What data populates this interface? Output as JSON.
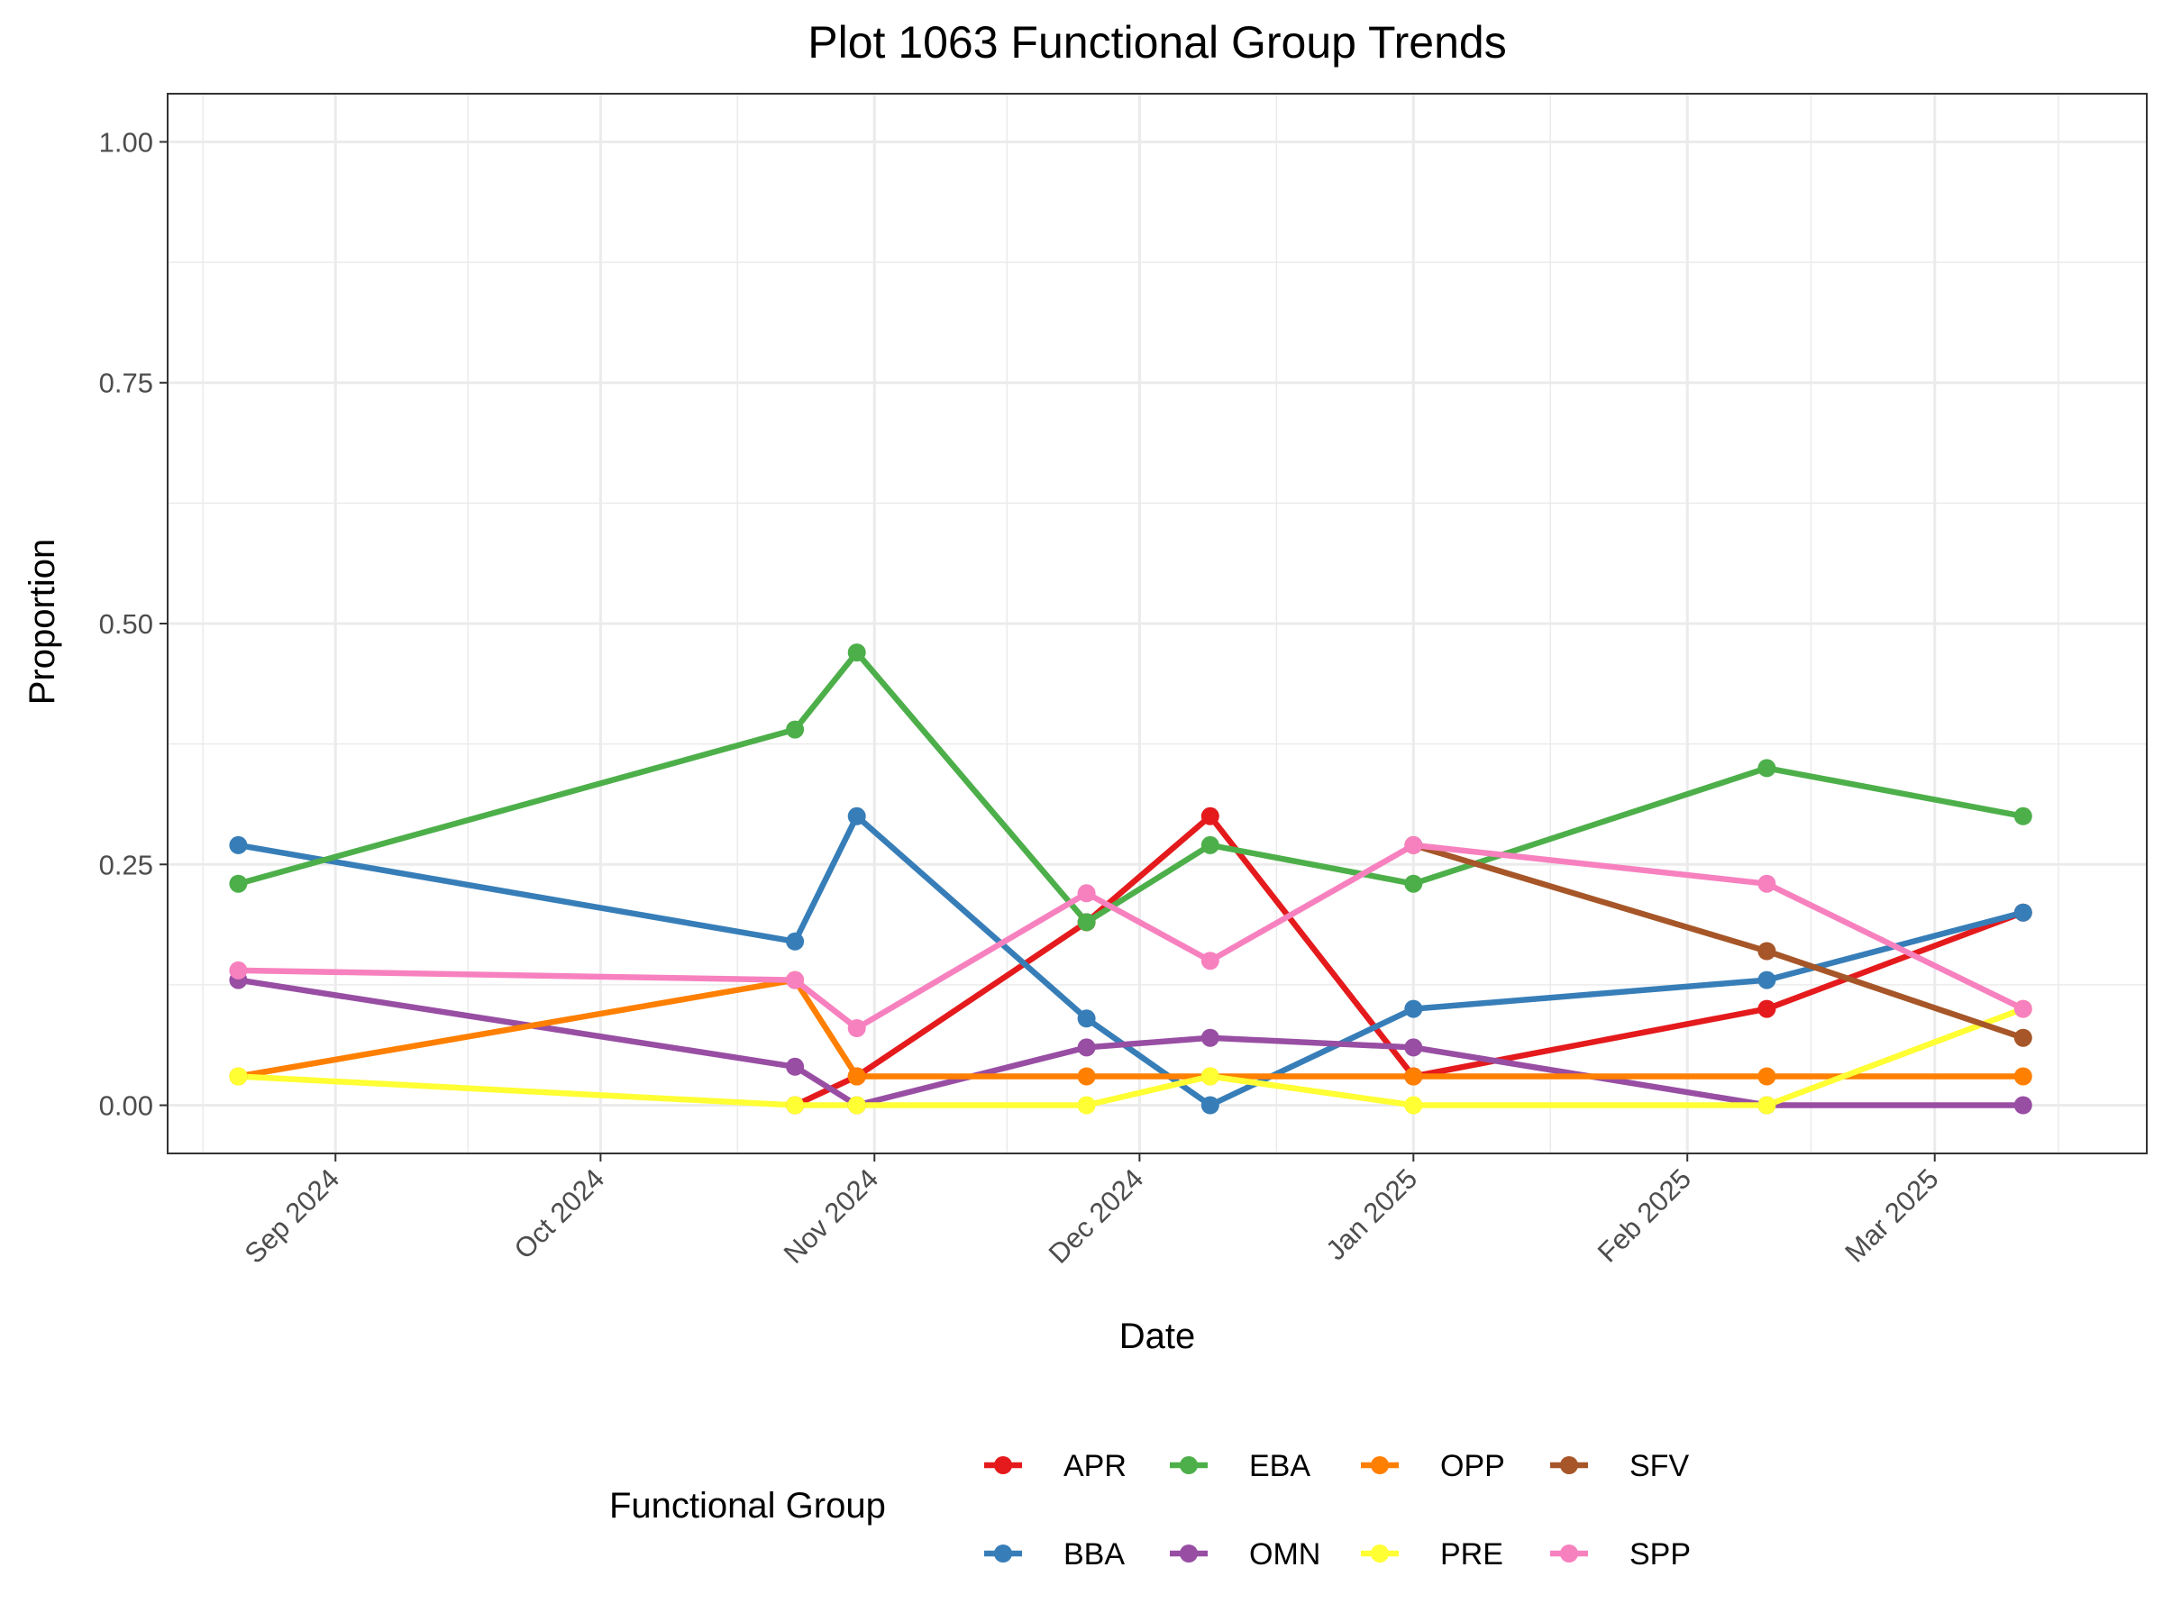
{
  "chart_data": {
    "type": "line",
    "title": "Plot 1063 Functional Group Trends",
    "xlabel": "Date",
    "ylabel": "Proportion",
    "ylim": [
      0,
      1
    ],
    "xlim": [
      "2024-08-13",
      "2025-03-25"
    ],
    "grid": true,
    "legend_position": "bottom",
    "legend_title": "Functional Group",
    "x_ticks": [
      {
        "date": "2024-09-01",
        "label": "Sep 2024"
      },
      {
        "date": "2024-10-01",
        "label": "Oct 2024"
      },
      {
        "date": "2024-11-01",
        "label": "Nov 2024"
      },
      {
        "date": "2024-12-01",
        "label": "Dec 2024"
      },
      {
        "date": "2025-01-01",
        "label": "Jan 2025"
      },
      {
        "date": "2025-02-01",
        "label": "Feb 2025"
      },
      {
        "date": "2025-03-01",
        "label": "Mar 2025"
      }
    ],
    "y_ticks": [
      {
        "value": 0,
        "label": "0.00"
      },
      {
        "value": 0.25,
        "label": "0.25"
      },
      {
        "value": 0.5,
        "label": "0.50"
      },
      {
        "value": 0.75,
        "label": "0.75"
      },
      {
        "value": 1,
        "label": "1.00"
      }
    ],
    "series": [
      {
        "name": "APR",
        "color": "#E41A1C",
        "points": [
          {
            "x": "2024-10-23",
            "y": 0
          },
          {
            "x": "2024-10-30",
            "y": 0.03
          },
          {
            "x": "2024-11-25",
            "y": 0.19
          },
          {
            "x": "2024-12-09",
            "y": 0.3
          },
          {
            "x": "2025-01-01",
            "y": 0.03
          },
          {
            "x": "2025-02-10",
            "y": 0.1
          },
          {
            "x": "2025-03-11",
            "y": 0.2
          }
        ]
      },
      {
        "name": "BBA",
        "color": "#377EB8",
        "points": [
          {
            "x": "2024-08-21",
            "y": 0.27
          },
          {
            "x": "2024-10-23",
            "y": 0.17
          },
          {
            "x": "2024-10-30",
            "y": 0.3
          },
          {
            "x": "2024-11-25",
            "y": 0.09
          },
          {
            "x": "2024-12-09",
            "y": 0
          },
          {
            "x": "2025-01-01",
            "y": 0.1
          },
          {
            "x": "2025-02-10",
            "y": 0.13
          },
          {
            "x": "2025-03-11",
            "y": 0.2
          }
        ]
      },
      {
        "name": "EBA",
        "color": "#4DAF4A",
        "points": [
          {
            "x": "2024-08-21",
            "y": 0.23
          },
          {
            "x": "2024-10-23",
            "y": 0.39
          },
          {
            "x": "2024-10-30",
            "y": 0.47
          },
          {
            "x": "2024-11-25",
            "y": 0.19
          },
          {
            "x": "2024-12-09",
            "y": 0.27
          },
          {
            "x": "2025-01-01",
            "y": 0.23
          },
          {
            "x": "2025-02-10",
            "y": 0.35
          },
          {
            "x": "2025-03-11",
            "y": 0.3
          }
        ]
      },
      {
        "name": "OMN",
        "color": "#984EA3",
        "points": [
          {
            "x": "2024-08-21",
            "y": 0.13
          },
          {
            "x": "2024-10-23",
            "y": 0.04
          },
          {
            "x": "2024-10-30",
            "y": 0
          },
          {
            "x": "2024-11-25",
            "y": 0.06
          },
          {
            "x": "2024-12-09",
            "y": 0.07
          },
          {
            "x": "2025-01-01",
            "y": 0.06
          },
          {
            "x": "2025-02-10",
            "y": 0
          },
          {
            "x": "2025-03-11",
            "y": 0
          }
        ]
      },
      {
        "name": "OPP",
        "color": "#FF7F00",
        "points": [
          {
            "x": "2024-08-21",
            "y": 0.03
          },
          {
            "x": "2024-10-23",
            "y": 0.13
          },
          {
            "x": "2024-10-30",
            "y": 0.03
          },
          {
            "x": "2024-11-25",
            "y": 0.03
          },
          {
            "x": "2024-12-09",
            "y": 0.03
          },
          {
            "x": "2025-01-01",
            "y": 0.03
          },
          {
            "x": "2025-02-10",
            "y": 0.03
          },
          {
            "x": "2025-03-11",
            "y": 0.03
          }
        ]
      },
      {
        "name": "PRE",
        "color": "#FFFF33",
        "points": [
          {
            "x": "2024-08-21",
            "y": 0.03
          },
          {
            "x": "2024-10-23",
            "y": 0
          },
          {
            "x": "2024-10-30",
            "y": 0
          },
          {
            "x": "2024-11-25",
            "y": 0
          },
          {
            "x": "2024-12-09",
            "y": 0.03
          },
          {
            "x": "2025-01-01",
            "y": 0
          },
          {
            "x": "2025-02-10",
            "y": 0
          },
          {
            "x": "2025-03-11",
            "y": 0.1
          }
        ]
      },
      {
        "name": "SFV",
        "color": "#A65628",
        "points": [
          {
            "x": "2025-01-01",
            "y": 0.27
          },
          {
            "x": "2025-02-10",
            "y": 0.16
          },
          {
            "x": "2025-03-11",
            "y": 0.07
          }
        ]
      },
      {
        "name": "SPP",
        "color": "#F781BF",
        "points": [
          {
            "x": "2024-08-21",
            "y": 0.14
          },
          {
            "x": "2024-10-23",
            "y": 0.13
          },
          {
            "x": "2024-10-30",
            "y": 0.08
          },
          {
            "x": "2024-11-25",
            "y": 0.22
          },
          {
            "x": "2024-12-09",
            "y": 0.15
          },
          {
            "x": "2025-01-01",
            "y": 0.27
          },
          {
            "x": "2025-02-10",
            "y": 0.23
          },
          {
            "x": "2025-03-11",
            "y": 0.1
          }
        ]
      }
    ]
  }
}
